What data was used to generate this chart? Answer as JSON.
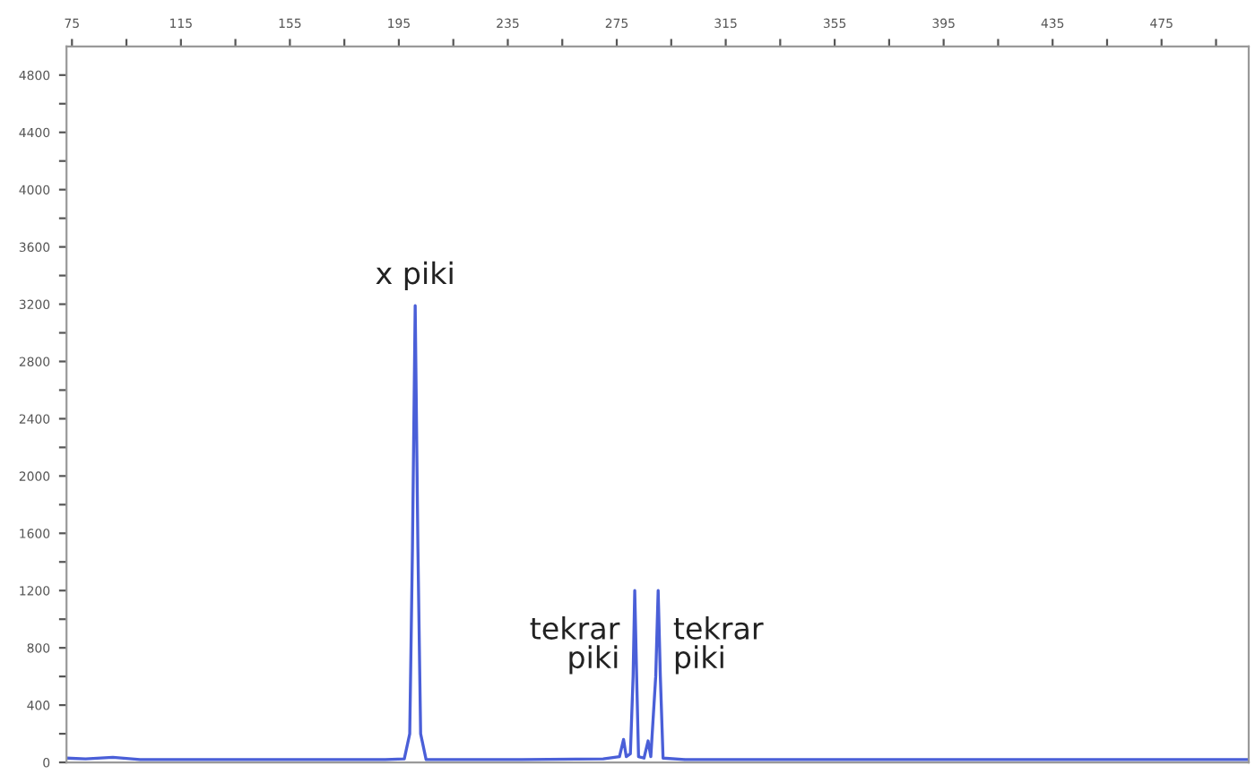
{
  "chart_data": {
    "type": "line",
    "x": [
      73,
      80,
      90,
      100,
      130,
      160,
      190,
      197,
      199,
      200,
      201,
      202,
      203,
      205,
      240,
      270,
      276,
      277.5,
      278.5,
      280,
      281,
      281.6,
      282.3,
      283,
      285,
      286.5,
      287.5,
      289.3,
      290.2,
      291,
      292,
      300,
      350,
      400,
      450,
      500,
      507
    ],
    "series": [
      {
        "color": "#4a5fd8",
        "values": [
          30,
          25,
          35,
          20,
          20,
          20,
          20,
          25,
          200,
          1500,
          3190,
          1500,
          200,
          20,
          20,
          25,
          40,
          160,
          40,
          60,
          600,
          1200,
          600,
          40,
          30,
          150,
          40,
          600,
          1200,
          600,
          30,
          20,
          20,
          20,
          20,
          20,
          20
        ]
      }
    ],
    "xlim": [
      73,
      507
    ],
    "xticks": [
      75,
      {
        "value": 95,
        "label": null
      },
      115,
      {
        "value": 135,
        "label": null
      },
      155,
      {
        "value": 175,
        "label": null
      },
      195,
      {
        "value": 215,
        "label": null
      },
      235,
      {
        "value": 255,
        "label": null
      },
      275,
      {
        "value": 295,
        "label": null
      },
      315,
      {
        "value": 335,
        "label": null
      },
      355,
      {
        "value": 375,
        "label": null
      },
      395,
      {
        "value": 415,
        "label": null
      },
      435,
      {
        "value": 455,
        "label": null
      },
      475,
      {
        "value": 495,
        "label": null
      }
    ],
    "ylim": [
      0,
      5000
    ],
    "yticks": [
      0,
      {
        "value": 200,
        "label": null
      },
      400,
      {
        "value": 600,
        "label": null
      },
      800,
      {
        "value": 1000,
        "label": null
      },
      1200,
      {
        "value": 1400,
        "label": null
      },
      1600,
      {
        "value": 1800,
        "label": null
      },
      2000,
      {
        "value": 2200,
        "label": null
      },
      2400,
      {
        "value": 2600,
        "label": null
      },
      2800,
      {
        "value": 3000,
        "label": null
      },
      3200,
      {
        "value": 3400,
        "label": null
      },
      3600,
      {
        "value": 3800,
        "label": null
      },
      4000,
      {
        "value": 4200,
        "label": null
      },
      4400,
      {
        "value": 4600,
        "label": null
      },
      4800
    ],
    "annotations": [
      {
        "text": "x piki",
        "x": 201,
        "y": 3190
      },
      {
        "text": "tekrar\npiki",
        "x": 281.6,
        "y": 1200
      },
      {
        "text": "tekrar\npiki",
        "x": 290.2,
        "y": 1200
      }
    ],
    "grid": false,
    "legend": false,
    "marker": "none",
    "line_style": "solid"
  }
}
